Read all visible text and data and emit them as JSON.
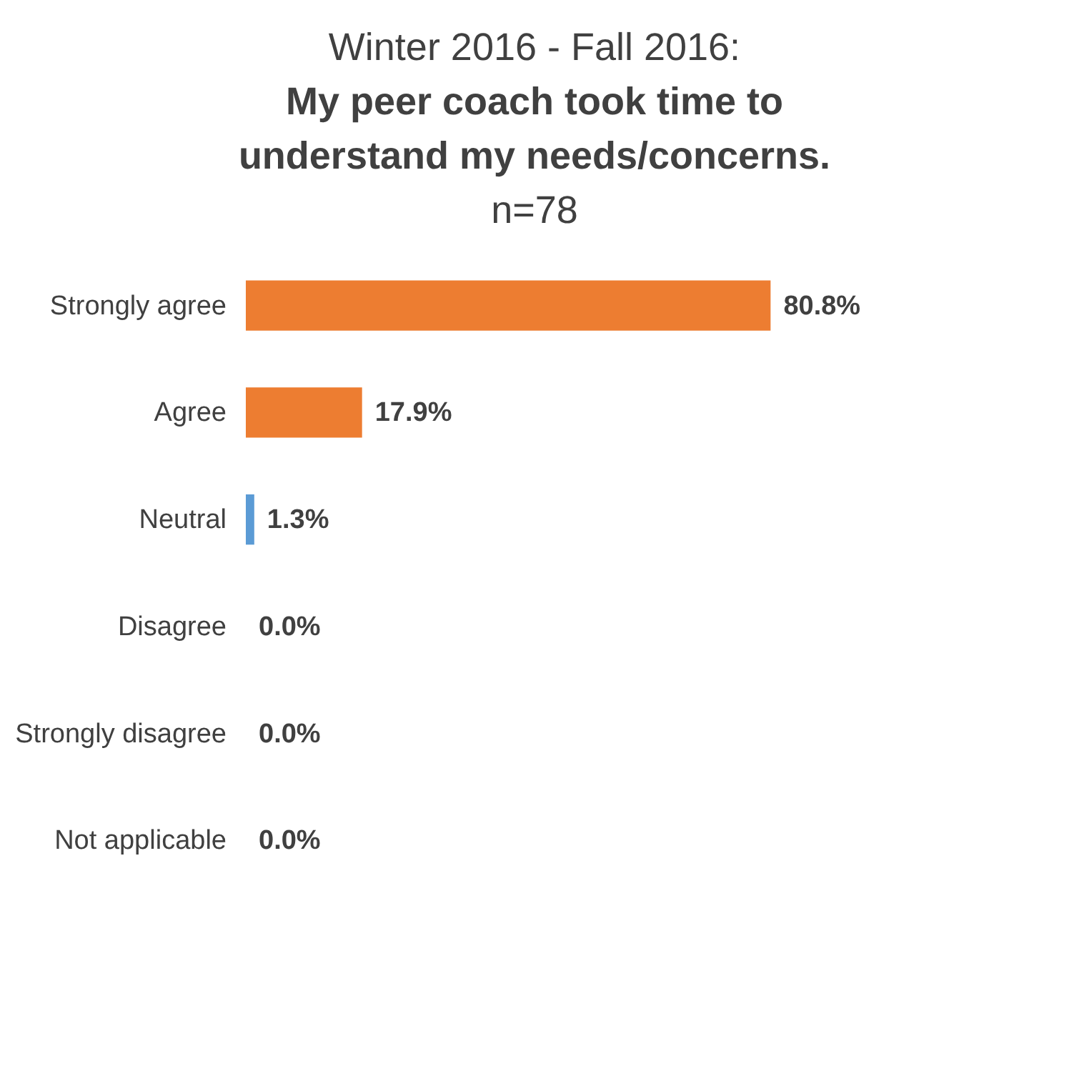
{
  "chart_data": {
    "type": "bar",
    "orientation": "horizontal",
    "title": "Winter 2016 - Fall 2016:",
    "subtitle": "My peer coach took time to understand my needs/concerns.",
    "annotations": [
      "n=78"
    ],
    "categories": [
      "Strongly agree",
      "Agree",
      "Neutral",
      "Disagree",
      "Strongly disagree",
      "Not applicable"
    ],
    "values": [
      80.8,
      17.9,
      1.3,
      0.0,
      0.0,
      0.0
    ],
    "colors": [
      "#ed7d31",
      "#ed7d31",
      "#5b9bd5",
      "#5b9bd5",
      "#5b9bd5",
      "#5b9bd5"
    ],
    "value_labels": [
      "80.8%",
      "17.9%",
      "1.3%",
      "0.0%",
      "0.0%",
      "0.0%"
    ],
    "tick_labels": "y"
  }
}
